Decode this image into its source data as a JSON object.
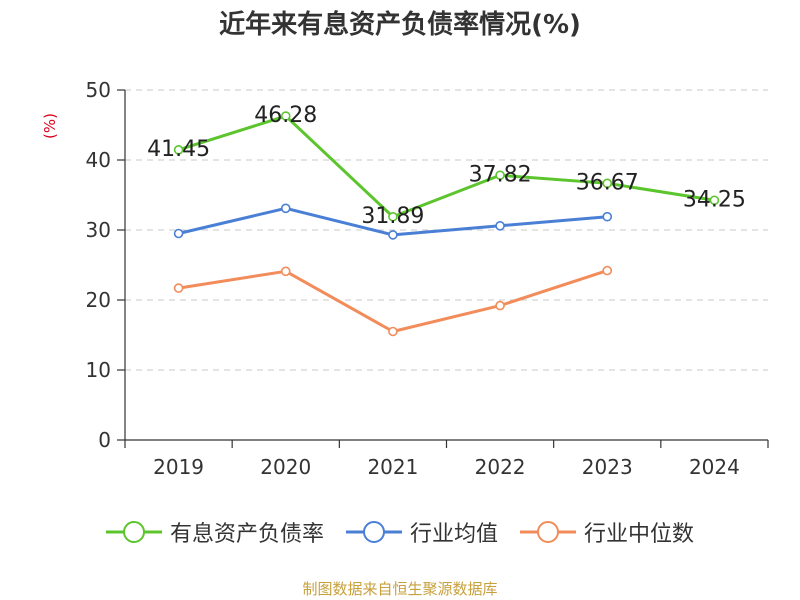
{
  "title": "近年来有息资产负债率情况(%)",
  "source": "制图数据来自恒生聚源数据库",
  "chart_data": {
    "type": "line",
    "title": "近年来有息资产负债率情况(%)",
    "xlabel": "",
    "ylabel": "(%)",
    "ylim": [
      0,
      50
    ],
    "yticks": [
      0,
      10,
      20,
      30,
      40,
      50
    ],
    "categories": [
      "2019",
      "2020",
      "2021",
      "2022",
      "2023",
      "2024"
    ],
    "grid": true,
    "legend_position": "bottom",
    "series": [
      {
        "name": "有息资产负债率",
        "color": "#5cc52e",
        "values": [
          41.45,
          46.28,
          31.89,
          37.82,
          36.67,
          34.25
        ],
        "labels": [
          "41.45",
          "46.28",
          "31.89",
          "37.82",
          "36.67",
          "34.25"
        ]
      },
      {
        "name": "行业均值",
        "color": "#4a7fd6",
        "values": [
          29.5,
          33.1,
          29.3,
          30.6,
          31.9,
          null
        ]
      },
      {
        "name": "行业中位数",
        "color": "#f28c5a",
        "values": [
          21.7,
          24.1,
          15.5,
          19.2,
          24.2,
          null
        ]
      }
    ]
  }
}
